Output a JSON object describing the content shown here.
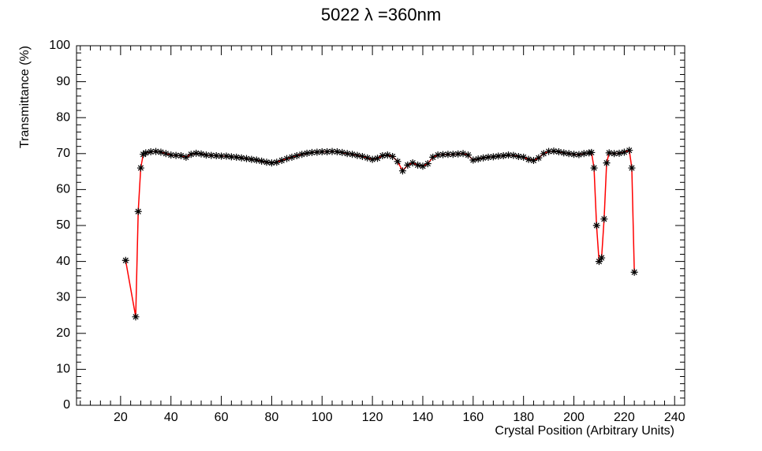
{
  "chart_data": {
    "type": "line",
    "title": "5022 λ =360nm",
    "x_label": "Crystal Position (Arbitrary Units)",
    "y_label": "Transmittance (%)",
    "xlim": [
      2.5,
      244
    ],
    "xticks": [
      20,
      40,
      60,
      80,
      100,
      120,
      140,
      160,
      180,
      200,
      220,
      240
    ],
    "ylim": [
      0,
      100
    ],
    "yticks": [
      0,
      10,
      20,
      30,
      40,
      50,
      60,
      70,
      80,
      90,
      100
    ],
    "series": [
      {
        "color": "#ff0000",
        "marker_color": "#000000",
        "x": [
          22,
          26,
          27,
          28,
          29,
          30,
          32,
          34,
          36,
          38,
          40,
          42,
          44,
          46,
          48,
          50,
          52,
          54,
          56,
          58,
          60,
          62,
          64,
          66,
          68,
          70,
          72,
          74,
          76,
          78,
          80,
          82,
          84,
          86,
          88,
          90,
          92,
          94,
          96,
          98,
          100,
          102,
          104,
          106,
          108,
          110,
          112,
          114,
          116,
          118,
          120,
          122,
          124,
          126,
          128,
          130,
          132,
          134,
          136,
          138,
          140,
          142,
          144,
          146,
          148,
          150,
          152,
          154,
          156,
          158,
          160,
          162,
          164,
          166,
          168,
          170,
          172,
          174,
          176,
          178,
          180,
          182,
          184,
          186,
          188,
          190,
          192,
          194,
          196,
          198,
          200,
          202,
          204,
          206,
          207,
          208,
          209,
          210,
          211,
          212,
          213,
          214,
          216,
          218,
          220,
          222,
          223,
          224
        ],
        "values": [
          40.3,
          24.6,
          53.9,
          66,
          69.8,
          70.2,
          70.5,
          70.6,
          70.4,
          70,
          69.6,
          69.5,
          69.4,
          69,
          69.8,
          70.1,
          69.9,
          69.6,
          69.5,
          69.4,
          69.3,
          69.3,
          69.1,
          69,
          68.8,
          68.6,
          68.4,
          68.2,
          67.9,
          67.6,
          67.4,
          67.6,
          68.1,
          68.6,
          69,
          69.4,
          69.8,
          70.1,
          70.3,
          70.4,
          70.5,
          70.5,
          70.6,
          70.5,
          70.3,
          70,
          69.8,
          69.5,
          69.2,
          68.8,
          68.4,
          68.7,
          69.4,
          69.6,
          69.2,
          67.8,
          65.2,
          66.8,
          67.4,
          66.8,
          66.5,
          67.2,
          69,
          69.6,
          69.7,
          69.8,
          69.8,
          69.9,
          70,
          69.6,
          68.2,
          68.5,
          68.8,
          69,
          69.1,
          69.3,
          69.4,
          69.6,
          69.5,
          69.2,
          69,
          68.4,
          68.1,
          68.8,
          70,
          70.6,
          70.7,
          70.5,
          70.2,
          70,
          69.8,
          69.7,
          70,
          70.2,
          70.3,
          66,
          50,
          40,
          41,
          51.8,
          67.4,
          70.2,
          70,
          70.1,
          70.4,
          70.9,
          66,
          37
        ]
      }
    ]
  }
}
